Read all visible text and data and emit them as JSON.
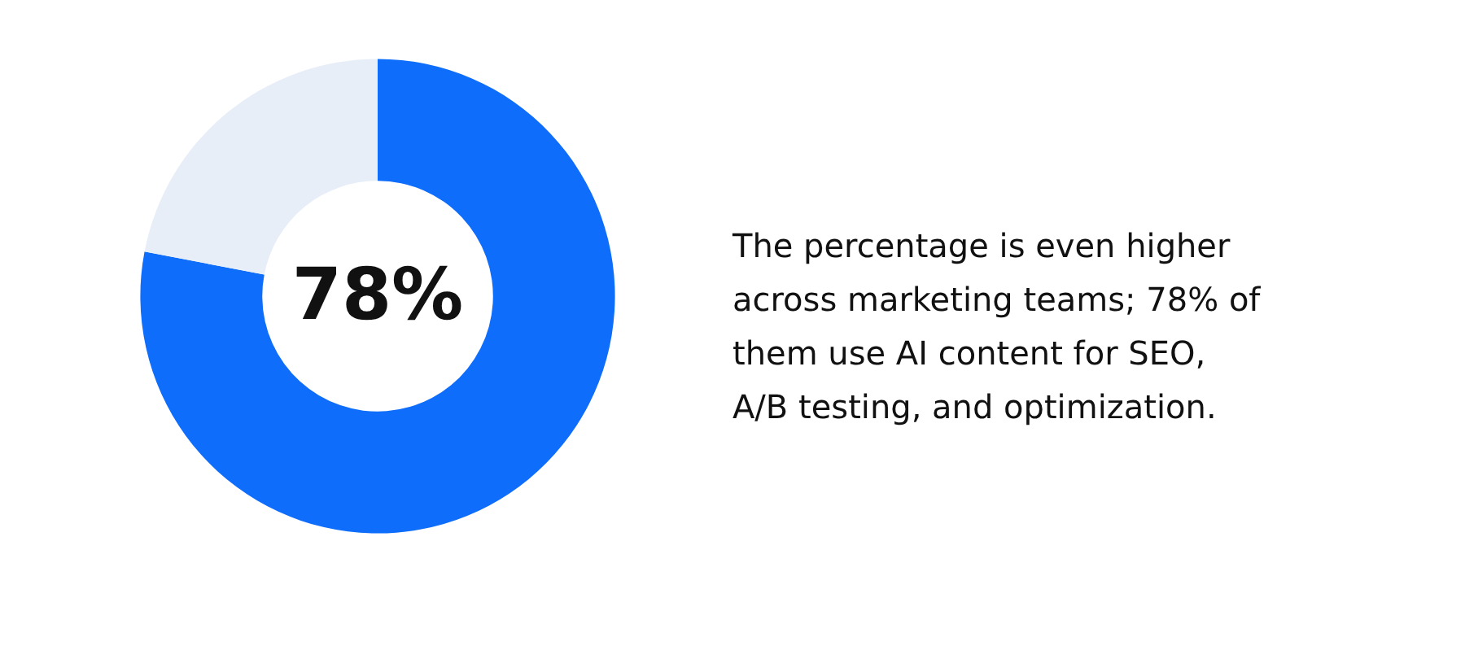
{
  "chart_data": {
    "type": "donut",
    "categories": [
      null,
      null
    ],
    "values": [
      78,
      22
    ],
    "colors": [
      "#0f6dfb",
      "#e8eef8"
    ],
    "annotations": [
      "78%",
      "The percentage is even higher across marketing teams; 78% of them use AI content for SEO, A/B testing, and optimization."
    ]
  }
}
